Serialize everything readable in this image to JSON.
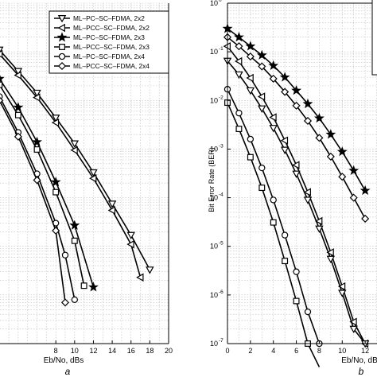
{
  "chart_data": [
    {
      "panel_label": "a",
      "type": "line",
      "xlabel": "Eb/No, dBs",
      "ylabel": "",
      "xlim": [
        -2,
        20
      ],
      "xticks": [
        8,
        10,
        12,
        14,
        16,
        18,
        20
      ],
      "ylim": [
        1e-07,
        1
      ],
      "yscale": "log",
      "grid": true,
      "legend_position": "top-right",
      "series": [
        {
          "name": "ML–PC–SC–FDMA,   2x2",
          "marker": "triangle-down",
          "x": [
            0,
            2,
            4,
            6,
            8,
            10,
            12,
            14,
            16,
            18
          ],
          "y": [
            0.3,
            0.11,
            0.04,
            0.0143,
            0.0044,
            0.0013,
            0.00033,
            7.5e-05,
            1.7e-05,
            3.3e-06
          ]
        },
        {
          "name": "ML–PCC–SC–FDMA,  2x2",
          "marker": "triangle-left",
          "x": [
            0,
            2,
            4,
            6,
            8,
            10,
            12,
            14,
            16,
            17
          ],
          "y": [
            0.25,
            0.09,
            0.033,
            0.0115,
            0.0035,
            0.00095,
            0.00025,
            5.5e-05,
            1.1e-05,
            2.3e-06
          ]
        },
        {
          "name": "ML–PC–SC–FDMA,   2x3",
          "marker": "star",
          "x": [
            0,
            2,
            4,
            6,
            8,
            10,
            12
          ],
          "y": [
            0.1,
            0.028,
            0.0072,
            0.0014,
            0.00021,
            2.7e-05,
            1.45e-06
          ]
        },
        {
          "name": "ML–PCC–SC–FDMA,  2x3",
          "marker": "square",
          "x": [
            0,
            2,
            4,
            6,
            8,
            10,
            11
          ],
          "y": [
            0.08,
            0.021,
            0.005,
            0.00098,
            0.00013,
            1.3e-05,
            1.55e-06
          ]
        },
        {
          "name": "ML–PC–SC–FDMA,   2x4",
          "marker": "circle",
          "x": [
            0,
            2,
            4,
            6,
            8,
            9,
            10
          ],
          "y": [
            0.05,
            0.012,
            0.0022,
            0.00031,
            3e-05,
            6.6e-06,
            8e-07
          ]
        },
        {
          "name": "ML–PCC–SC–FDMA,  2x4",
          "marker": "diamond",
          "x": [
            0,
            2,
            4,
            6,
            8,
            9
          ],
          "y": [
            0.045,
            0.01,
            0.0018,
            0.00023,
            2.1e-05,
            7e-07
          ]
        }
      ]
    },
    {
      "panel_label": "b",
      "type": "line",
      "xlabel": "Eb/No, dB",
      "ylabel": "Bit Error Rate (BER)",
      "xlim": [
        0,
        14
      ],
      "xticks": [
        0,
        2,
        4,
        6,
        8,
        10,
        12
      ],
      "ylim": [
        1e-07,
        1
      ],
      "yscale": "log",
      "yticks": [
        {
          "base": "10",
          "exp": "0"
        },
        {
          "base": "10",
          "exp": "-1"
        },
        {
          "base": "10",
          "exp": "-2"
        },
        {
          "base": "10",
          "exp": "-3"
        },
        {
          "base": "10",
          "exp": "-4"
        },
        {
          "base": "10",
          "exp": "-5"
        },
        {
          "base": "10",
          "exp": "-6"
        },
        {
          "base": "10",
          "exp": "-7"
        }
      ],
      "grid": true,
      "series": [
        {
          "marker": "star",
          "x": [
            0,
            1,
            2,
            3,
            4,
            5,
            6,
            7,
            8,
            9,
            10,
            11,
            12
          ],
          "y": [
            0.3,
            0.2,
            0.13,
            0.085,
            0.052,
            0.03,
            0.016,
            0.0085,
            0.0043,
            0.002,
            0.00088,
            0.00036,
            0.00014
          ]
        },
        {
          "marker": "diamond",
          "x": [
            0,
            1,
            2,
            3,
            4,
            5,
            6,
            7,
            8,
            9,
            10,
            11,
            12
          ],
          "y": [
            0.2,
            0.13,
            0.08,
            0.05,
            0.028,
            0.015,
            0.0078,
            0.0038,
            0.0017,
            0.0007,
            0.00027,
            0.0001,
            3.7e-05
          ]
        },
        {
          "marker": "triangle-left",
          "x": [
            0,
            1,
            2,
            3,
            4,
            5,
            6,
            7,
            8,
            9,
            10,
            11,
            12
          ],
          "y": [
            0.13,
            0.064,
            0.029,
            0.012,
            0.0045,
            0.0015,
            0.00047,
            0.00013,
            3.3e-05,
            7.5e-06,
            1.5e-06,
            2.8e-07,
            1e-07
          ]
        },
        {
          "marker": "triangle-down",
          "x": [
            0,
            1,
            2,
            3,
            4,
            5,
            6,
            7,
            8,
            9,
            10,
            11,
            12
          ],
          "y": [
            0.065,
            0.034,
            0.016,
            0.0068,
            0.0027,
            0.00096,
            0.00031,
            9e-05,
            2.3e-05,
            5.5e-06,
            1.1e-06,
            2e-07,
            1e-07
          ]
        },
        {
          "marker": "circle",
          "x": [
            0,
            1,
            2,
            3,
            4,
            5,
            6,
            7,
            8
          ],
          "y": [
            0.017,
            0.0055,
            0.0016,
            0.00041,
            9e-05,
            1.7e-05,
            3e-06,
            4.5e-07,
            1e-07
          ]
        },
        {
          "marker": "square",
          "x": [
            0,
            1,
            2,
            3,
            4,
            5,
            6,
            7,
            8
          ],
          "y": [
            0.009,
            0.0026,
            0.00068,
            0.00016,
            3.1e-05,
            5e-06,
            7.5e-07,
            1e-07,
            3.3e-08
          ]
        }
      ]
    }
  ]
}
